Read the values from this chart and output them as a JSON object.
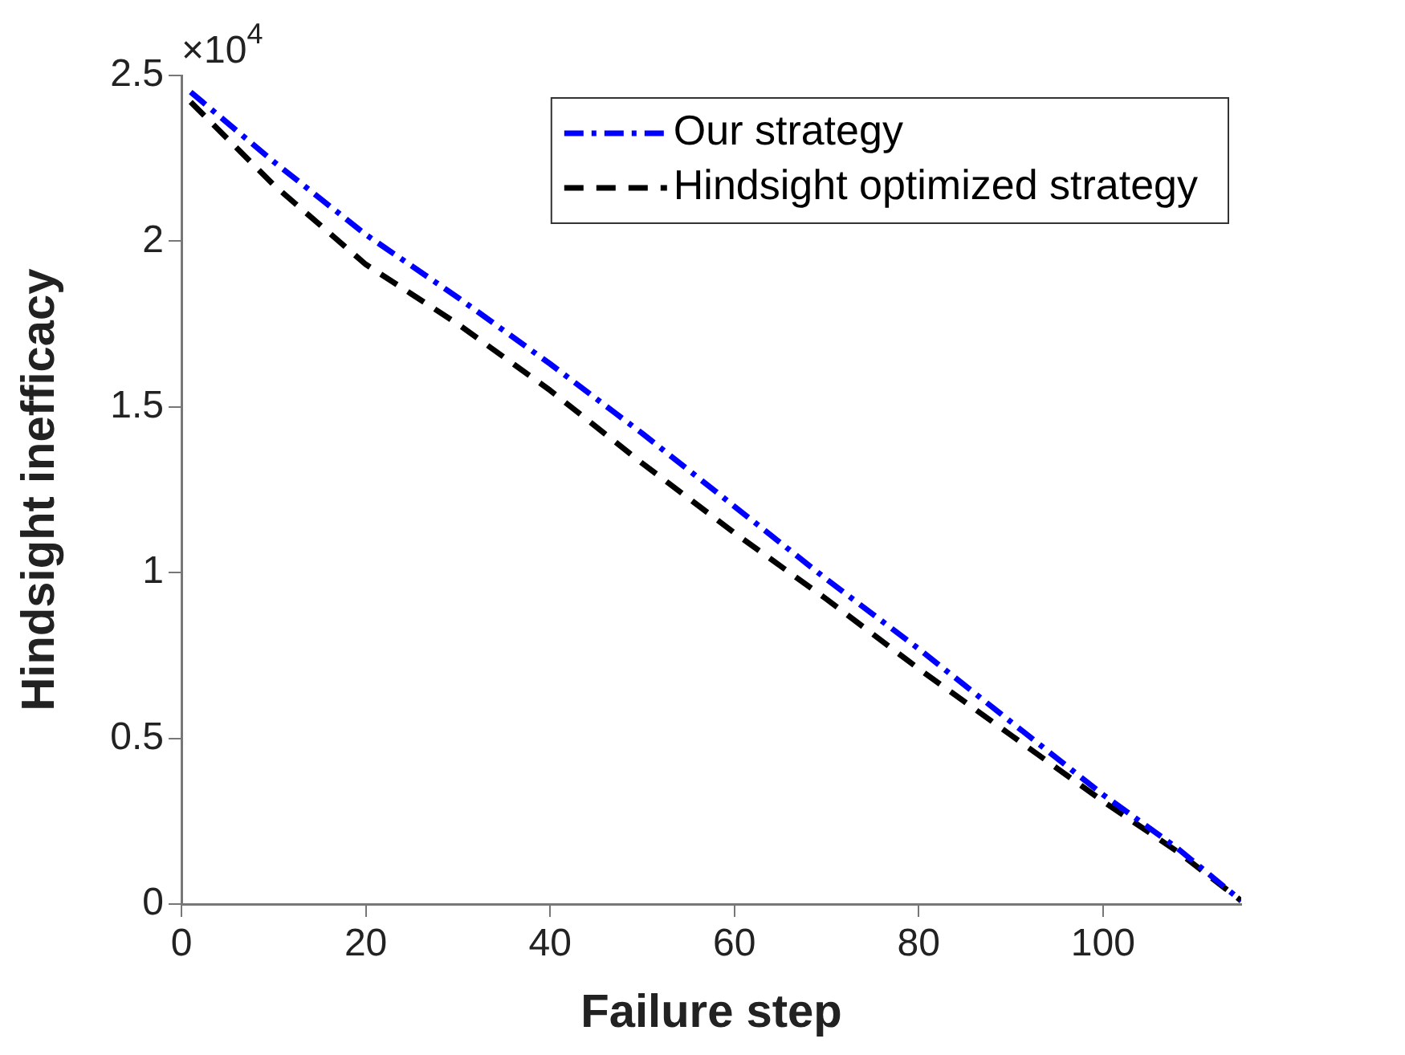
{
  "chart_data": {
    "type": "line",
    "xlabel": "Failure step",
    "ylabel": "Hindsight inefficacy",
    "x": [
      1,
      10,
      20,
      30,
      40,
      50,
      60,
      70,
      80,
      90,
      100,
      108,
      115
    ],
    "xlim": [
      0,
      115
    ],
    "xticks": [
      0,
      20,
      40,
      60,
      80,
      100
    ],
    "ylim": [
      0,
      2.5
    ],
    "yticks": [
      0,
      0.5,
      1,
      1.5,
      2,
      2.5
    ],
    "grid": false,
    "legend": "top right",
    "marker": "none",
    "annotations": [
      "×10$^{4}$"
    ],
    "series": [
      {
        "name": "Our strategy",
        "color": "#0000ff",
        "line_style": "dashdot",
        "values": [
          2.45,
          2.24,
          2.02,
          1.83,
          1.63,
          1.42,
          1.2,
          0.98,
          0.77,
          0.55,
          0.33,
          0.17,
          0.01
        ]
      },
      {
        "name": "Hindsight optimized strategy",
        "color": "#000000",
        "line_style": "dashed",
        "values": [
          2.42,
          2.17,
          1.93,
          1.75,
          1.55,
          1.33,
          1.12,
          0.92,
          0.71,
          0.51,
          0.31,
          0.16,
          0.01
        ]
      }
    ]
  }
}
